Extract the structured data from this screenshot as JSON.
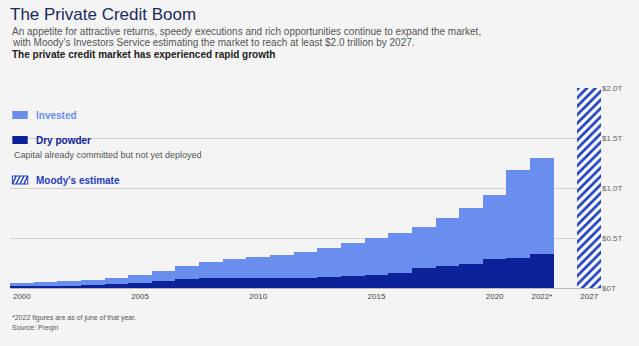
{
  "chart_data": {
    "type": "bar",
    "title": "The Private Credit Boom",
    "subtitle": [
      "An appetite for attractive returns, speedy executions and rich opportunities continue to expand the market,",
      "with Moody's Investors Service estimating the market to reach at least $2.0 trillion by 2027."
    ],
    "annotations": [
      "The private credit market has experienced rapid growth",
      "Capital already committed but not yet deployed",
      "*2022 figures are as of june of that year.",
      "Source: Preqin"
    ],
    "categories": [
      "2000",
      null,
      null,
      null,
      null,
      "2005",
      null,
      null,
      null,
      null,
      "2010",
      null,
      null,
      null,
      null,
      "2015",
      null,
      null,
      null,
      null,
      "2020",
      null,
      "2022*",
      null,
      "2027"
    ],
    "series": [
      {
        "name": "Invested",
        "color": "#6a8eed",
        "values": [
          0.03,
          0.04,
          0.05,
          0.05,
          0.06,
          0.08,
          0.1,
          0.13,
          0.16,
          0.19,
          0.21,
          0.23,
          0.26,
          0.29,
          0.33,
          0.37,
          0.4,
          0.41,
          0.48,
          0.56,
          0.64,
          0.88,
          0.96,
          null,
          null
        ]
      },
      {
        "name": "Dry powder",
        "color": "#0b2299",
        "values": [
          0.02,
          0.02,
          0.02,
          0.03,
          0.04,
          0.05,
          0.07,
          0.09,
          0.1,
          0.1,
          0.1,
          0.1,
          0.1,
          0.11,
          0.12,
          0.13,
          0.15,
          0.2,
          0.22,
          0.24,
          0.29,
          0.3,
          0.34,
          null,
          null
        ]
      },
      {
        "name": "Moody's estimate",
        "color": "#1f3fbf",
        "marker": "hatch",
        "values": [
          null,
          null,
          null,
          null,
          null,
          null,
          null,
          null,
          null,
          null,
          null,
          null,
          null,
          null,
          null,
          null,
          null,
          null,
          null,
          null,
          null,
          null,
          null,
          null,
          2.0
        ]
      }
    ],
    "stacked": true,
    "ylim": [
      0,
      2.0
    ],
    "yticks": [
      {
        "value": 0,
        "label": "$0T"
      },
      {
        "value": 0.5,
        "label": "$0.5T"
      },
      {
        "value": 1.0,
        "label": "$1.0T"
      },
      {
        "value": 1.5,
        "label": "$1.5T"
      },
      {
        "value": 2.0,
        "label": "$2.0T"
      }
    ],
    "grid": true,
    "legend": "upper left"
  }
}
